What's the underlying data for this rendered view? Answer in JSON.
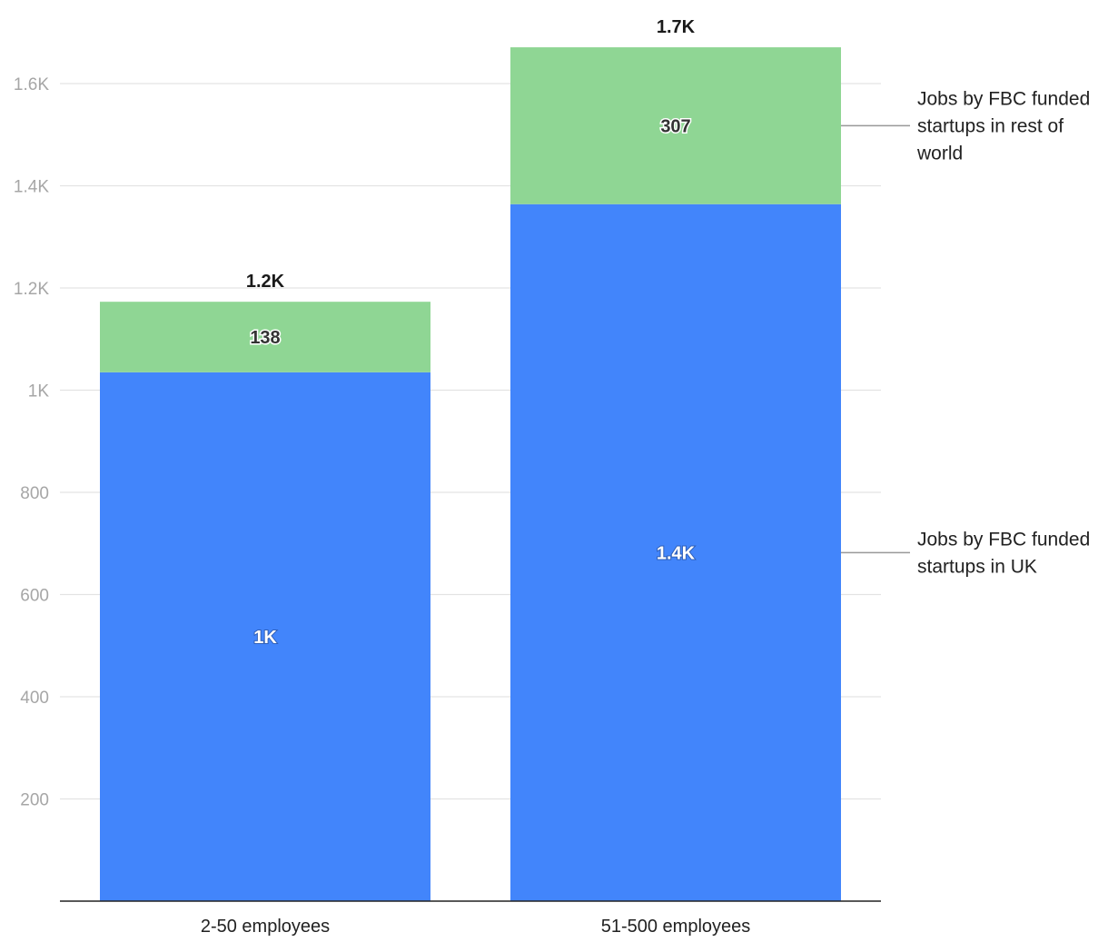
{
  "chart_data": {
    "type": "bar",
    "stacked": true,
    "categories": [
      "2-50 employees",
      "51-500 employees"
    ],
    "series": [
      {
        "name": "Jobs by FBC funded startups in UK",
        "name_lines": [
          "Jobs by FBC funded",
          "startups in UK"
        ],
        "color": "#4285fb",
        "values": [
          1035,
          1364
        ],
        "labels": [
          "1K",
          "1.4K"
        ]
      },
      {
        "name": "Jobs by FBC funded startups in rest of world",
        "name_lines": [
          "Jobs by FBC funded",
          "startups in rest of",
          "world"
        ],
        "color": "#8fd694",
        "values": [
          138,
          307
        ],
        "labels": [
          "138",
          "307"
        ]
      }
    ],
    "totals": [
      1173,
      1671
    ],
    "total_labels": [
      "1.2K",
      "1.7K"
    ],
    "y_ticks": [
      200,
      400,
      600,
      800,
      1000,
      1200,
      1400,
      1600
    ],
    "y_tick_labels": [
      "200",
      "400",
      "600",
      "800",
      "1K",
      "1.2K",
      "1.4K",
      "1.6K"
    ],
    "ylim": [
      0,
      1700
    ],
    "grid": true,
    "legend": "right"
  }
}
